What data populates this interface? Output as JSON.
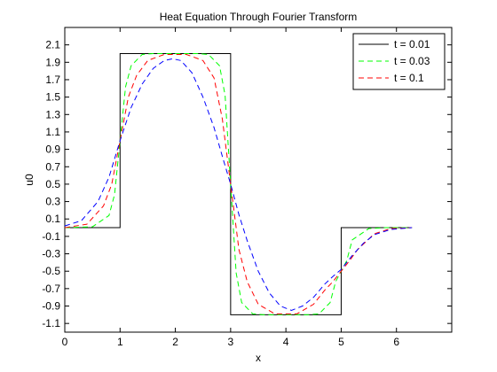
{
  "chart_data": {
    "type": "line",
    "title": "Heat Equation Through Fourier Transform",
    "xlabel": "x",
    "ylabel": "u0",
    "xlim": [
      0,
      7
    ],
    "ylim": [
      -1.2,
      2.3
    ],
    "xticks": [
      0,
      1,
      2,
      3,
      4,
      5,
      6
    ],
    "xtick_labels": [
      "0",
      "1",
      "2",
      "3",
      "4",
      "5",
      "6"
    ],
    "yticks": [
      2.1,
      1.9,
      1.7,
      1.5,
      1.3,
      1.1,
      0.9,
      0.7,
      0.5,
      0.3,
      0.1,
      -0.1,
      -0.3,
      -0.5,
      -0.7,
      -0.9,
      -1.1
    ],
    "ytick_labels": [
      "2.1",
      "1.9",
      "1.7",
      "1.5",
      "1.3",
      "1.1",
      "0.9",
      "0.7",
      "0.5",
      "0.3",
      "0.1",
      "-0.1",
      "-0.3",
      "-0.5",
      "-0.7",
      "-0.9",
      "-1.1"
    ],
    "grid": false,
    "legend_position": "top-right",
    "series": [
      {
        "name": "t = 0.01",
        "color": "#000000",
        "dash": "solid",
        "x": [
          0,
          1,
          1,
          3,
          3,
          5,
          5,
          6.28
        ],
        "y": [
          0,
          0,
          2,
          2,
          -1,
          -1,
          0,
          0
        ]
      },
      {
        "name": "t = 0.03",
        "color": "#00ff00",
        "dash": "dashed",
        "x": [
          0,
          0.5,
          0.8,
          0.9,
          1.0,
          1.1,
          1.2,
          1.4,
          1.6,
          2.0,
          2.4,
          2.6,
          2.8,
          2.9,
          3.0,
          3.1,
          3.2,
          3.4,
          3.6,
          4.0,
          4.4,
          4.6,
          4.8,
          4.9,
          5.0,
          5.1,
          5.2,
          5.5,
          5.8,
          6.28
        ],
        "y": [
          0,
          0.01,
          0.14,
          0.38,
          1.0,
          1.62,
          1.86,
          1.99,
          2.0,
          2.0,
          2.0,
          1.99,
          1.86,
          1.52,
          0.5,
          -0.52,
          -0.86,
          -0.99,
          -1.0,
          -1.0,
          -1.0,
          -0.99,
          -0.86,
          -0.62,
          -0.5,
          -0.38,
          -0.14,
          -0.01,
          0.0,
          0.0
        ]
      },
      {
        "name": "t = 0.1",
        "color": "#ff0000",
        "dash": "dashed",
        "x": [
          0,
          0.4,
          0.7,
          0.85,
          1.0,
          1.15,
          1.3,
          1.5,
          1.8,
          2.2,
          2.5,
          2.7,
          2.85,
          3.0,
          3.15,
          3.3,
          3.5,
          3.8,
          4.2,
          4.5,
          4.7,
          4.85,
          5.0,
          5.15,
          5.3,
          5.6,
          5.9,
          6.28
        ],
        "y": [
          0,
          0.04,
          0.25,
          0.5,
          1.0,
          1.5,
          1.75,
          1.92,
          1.99,
          1.99,
          1.92,
          1.72,
          1.25,
          0.5,
          -0.25,
          -0.62,
          -0.88,
          -0.99,
          -0.99,
          -0.88,
          -0.72,
          -0.62,
          -0.5,
          -0.38,
          -0.25,
          -0.07,
          -0.01,
          0.0
        ]
      },
      {
        "name": "",
        "color": "#0000ff",
        "dash": "dashed",
        "x": [
          0,
          0.3,
          0.6,
          0.8,
          1.0,
          1.2,
          1.4,
          1.6,
          1.8,
          1.95,
          2.1,
          2.3,
          2.5,
          2.7,
          2.85,
          3.0,
          3.15,
          3.3,
          3.5,
          3.7,
          3.9,
          4.1,
          4.3,
          4.5,
          4.7,
          4.85,
          5.0,
          5.2,
          5.4,
          5.6,
          5.9,
          6.28
        ],
        "y": [
          0.02,
          0.08,
          0.3,
          0.58,
          1.0,
          1.38,
          1.65,
          1.83,
          1.92,
          1.94,
          1.92,
          1.78,
          1.5,
          1.15,
          0.82,
          0.5,
          0.15,
          -0.15,
          -0.5,
          -0.75,
          -0.9,
          -0.95,
          -0.9,
          -0.8,
          -0.65,
          -0.56,
          -0.48,
          -0.32,
          -0.18,
          -0.08,
          -0.02,
          0.0
        ]
      }
    ]
  }
}
